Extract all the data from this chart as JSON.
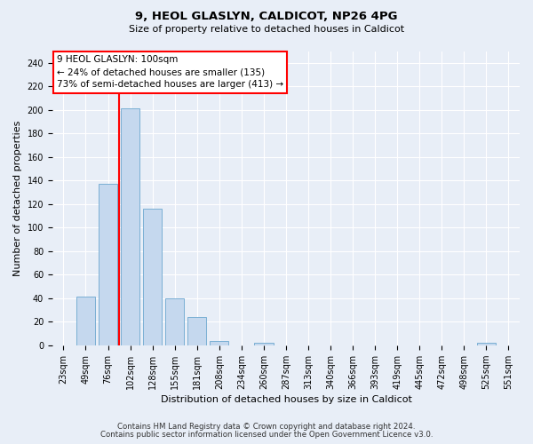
{
  "title1": "9, HEOL GLASLYN, CALDICOT, NP26 4PG",
  "title2": "Size of property relative to detached houses in Caldicot",
  "xlabel": "Distribution of detached houses by size in Caldicot",
  "ylabel": "Number of detached properties",
  "bar_labels": [
    "23sqm",
    "49sqm",
    "76sqm",
    "102sqm",
    "128sqm",
    "155sqm",
    "181sqm",
    "208sqm",
    "234sqm",
    "260sqm",
    "287sqm",
    "313sqm",
    "340sqm",
    "366sqm",
    "393sqm",
    "419sqm",
    "445sqm",
    "472sqm",
    "498sqm",
    "525sqm",
    "551sqm"
  ],
  "bar_values": [
    0,
    41,
    137,
    201,
    116,
    40,
    24,
    4,
    0,
    2,
    0,
    0,
    0,
    0,
    0,
    0,
    0,
    0,
    0,
    2,
    0
  ],
  "bar_color": "#c5d8ee",
  "bar_edge_color": "#7aafd4",
  "red_line_index": 3,
  "annotation_text": "9 HEOL GLASLYN: 100sqm\n← 24% of detached houses are smaller (135)\n73% of semi-detached houses are larger (413) →",
  "annotation_box_color": "white",
  "annotation_box_edge": "red",
  "vline_color": "red",
  "ylim": [
    0,
    250
  ],
  "yticks": [
    0,
    20,
    40,
    60,
    80,
    100,
    120,
    140,
    160,
    180,
    200,
    220,
    240
  ],
  "footer1": "Contains HM Land Registry data © Crown copyright and database right 2024.",
  "footer2": "Contains public sector information licensed under the Open Government Licence v3.0.",
  "bg_color": "#e8eef7",
  "grid_color": "#ffffff",
  "title1_fontsize": 9.5,
  "title2_fontsize": 8,
  "ylabel_fontsize": 8,
  "xlabel_fontsize": 8,
  "tick_fontsize": 7,
  "annotation_fontsize": 7.5
}
